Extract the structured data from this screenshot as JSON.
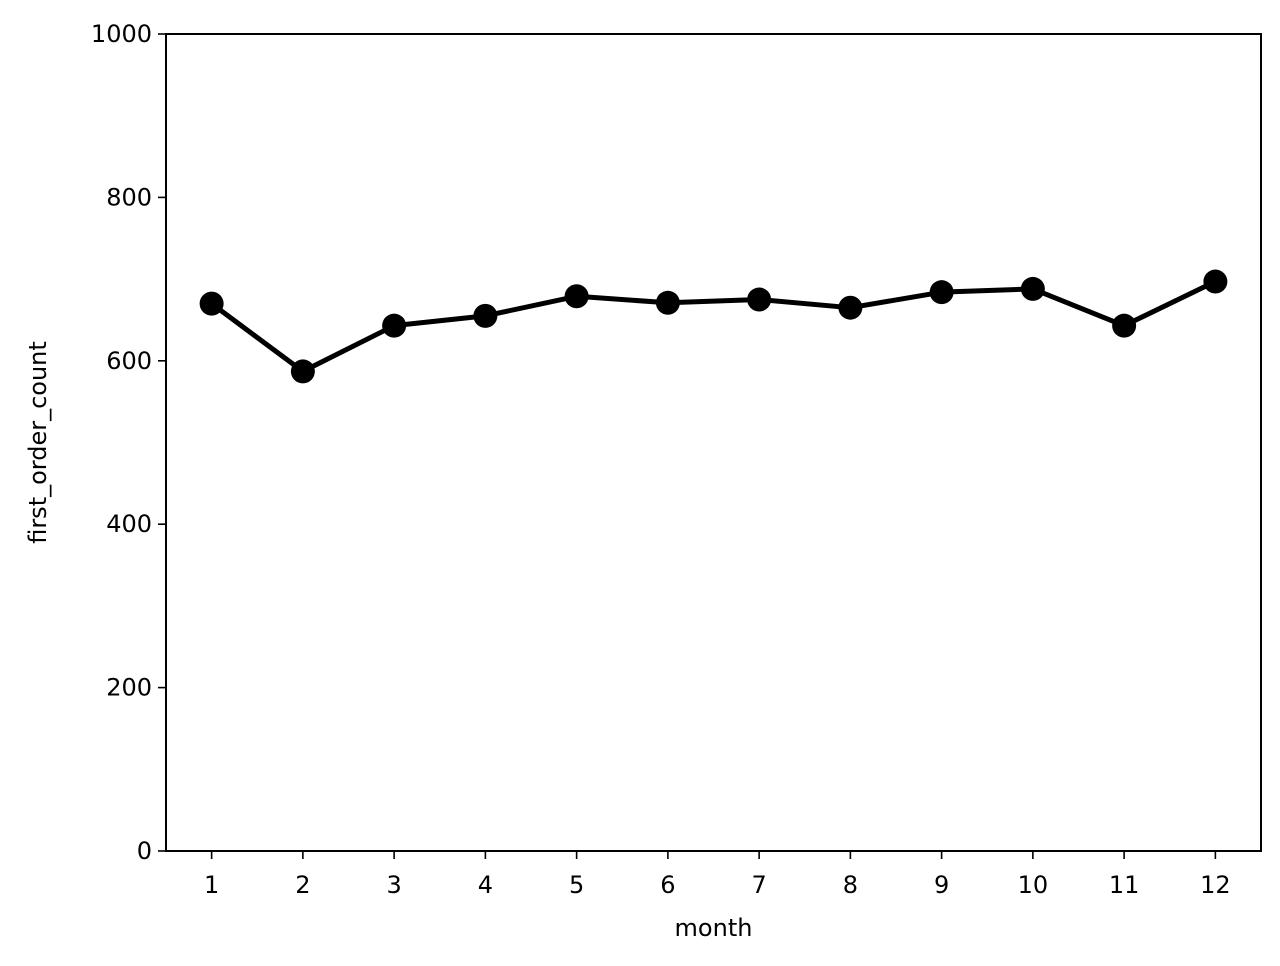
{
  "chart_data": {
    "type": "line",
    "title": "",
    "xlabel": "month",
    "ylabel": "first_order_count",
    "x": [
      1,
      2,
      3,
      4,
      5,
      6,
      7,
      8,
      9,
      10,
      11,
      12
    ],
    "x_tick_labels": [
      "1",
      "2",
      "3",
      "4",
      "5",
      "6",
      "7",
      "8",
      "9",
      "10",
      "11",
      "12"
    ],
    "y_ticks": [
      0,
      200,
      400,
      600,
      800,
      1000
    ],
    "y_tick_labels": [
      "0",
      "200",
      "400",
      "600",
      "800",
      "1000"
    ],
    "ylim": [
      0,
      1000
    ],
    "xlim": [
      0.5,
      12.5
    ],
    "grid": false,
    "series": [
      {
        "values": [
          670,
          587,
          643,
          655,
          679,
          671,
          675,
          665,
          684,
          688,
          643,
          697
        ],
        "color": "#000000",
        "marker": "circle"
      }
    ]
  }
}
